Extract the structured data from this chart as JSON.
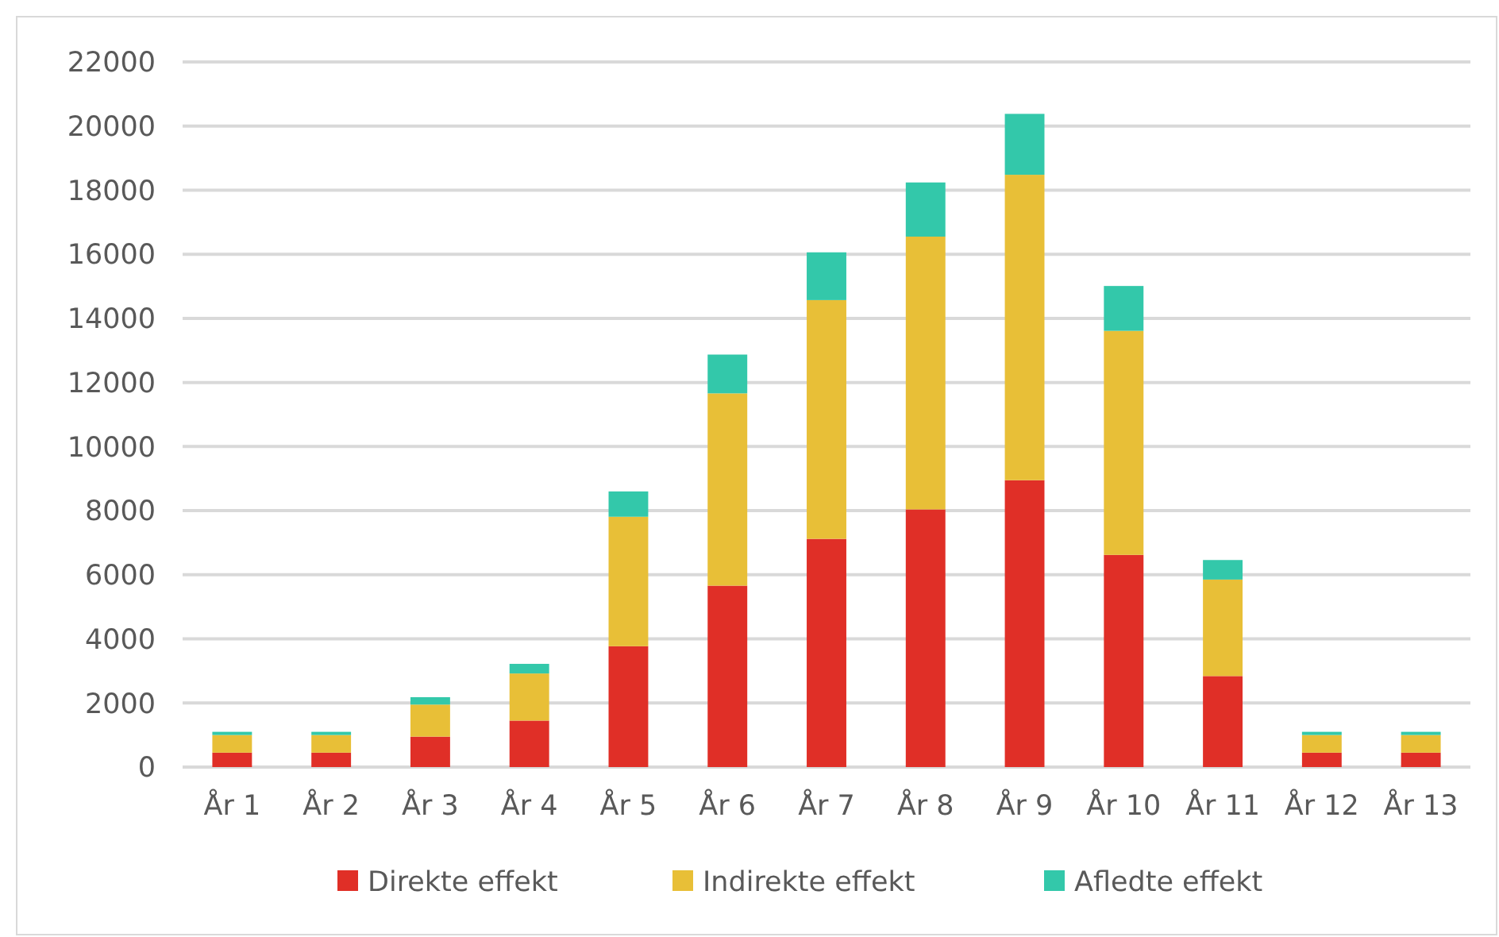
{
  "chart_data": {
    "type": "bar",
    "stacked": true,
    "categories": [
      "År 1",
      "År 2",
      "År 3",
      "År 4",
      "År 5",
      "År 6",
      "År 7",
      "År 8",
      "År 9",
      "År 10",
      "År 11",
      "År 12",
      "År 13"
    ],
    "series": [
      {
        "name": "Direkte effekt",
        "color": "#e02f27",
        "values": [
          450,
          450,
          950,
          1450,
          3770,
          5660,
          7120,
          8040,
          8950,
          6620,
          2840,
          450,
          450
        ]
      },
      {
        "name": "Indirekte effekt",
        "color": "#e8bf37",
        "values": [
          550,
          550,
          1000,
          1470,
          4040,
          6000,
          7450,
          8510,
          9530,
          6990,
          3010,
          550,
          550
        ]
      },
      {
        "name": "Afledte effekt",
        "color": "#33c8aa",
        "values": [
          100,
          100,
          230,
          300,
          790,
          1210,
          1490,
          1690,
          1900,
          1400,
          610,
          100,
          100
        ]
      }
    ],
    "ylim": [
      0,
      22000
    ],
    "yticks": [
      0,
      2000,
      4000,
      6000,
      8000,
      10000,
      12000,
      14000,
      16000,
      18000,
      20000,
      22000
    ],
    "grid": "y",
    "legend": "bottom"
  }
}
